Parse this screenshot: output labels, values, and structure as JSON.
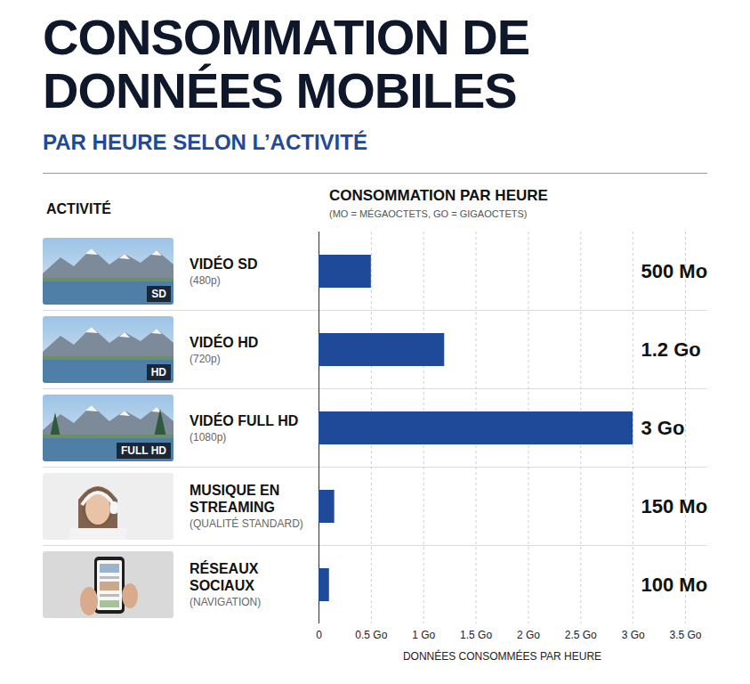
{
  "chart_data": {
    "type": "bar",
    "title": "CONSOMMATION DE DONNÉES MOBILES",
    "subtitle": "PAR HEURE SELON L’ACTIVITÉ",
    "category_header": "ACTIVITÉ",
    "value_header": "CONSOMMATION PAR HEURE",
    "value_header_note": "(MO = MÉGAOCTETS, GO = GIGAOCTETS)",
    "xlabel": "DONNÉES CONSOMMÉES PAR HEURE",
    "categories": [
      "VIDÉO SD",
      "VIDÉO HD",
      "VIDÉO FULL HD",
      "MUSIQUE EN STREAMING",
      "RÉSEAUX SOCIAUX"
    ],
    "category_notes": [
      "(480p)",
      "(720p)",
      "(1080p)",
      "(QUALITÉ STANDARD)",
      "(NAVIGATION)"
    ],
    "image_badges": [
      "SD",
      "HD",
      "FULL HD",
      null,
      null
    ],
    "values": [
      0.5,
      1.2,
      3,
      0.15,
      0.1
    ],
    "value_labels": [
      "500 Mo",
      "1.2 Go",
      "3 Go",
      "150 Mo",
      "100 Mo"
    ],
    "xlim": [
      0,
      3.5
    ],
    "xticks": [
      0,
      {
        "value": 0.5,
        "label": "0.5 Go"
      },
      {
        "value": 1,
        "label": "1 Go"
      },
      {
        "value": 1.5,
        "label": "1.5 Go"
      },
      {
        "value": 2,
        "label": "2 Go"
      },
      {
        "value": 2.5,
        "label": "2.5 Go"
      },
      {
        "value": 3,
        "label": "3 Go"
      },
      {
        "value": 3.5,
        "label": "3.5 Go"
      }
    ],
    "orientation": "horizontal",
    "data_labels": true,
    "grid": true,
    "color": "#1f4a99"
  }
}
